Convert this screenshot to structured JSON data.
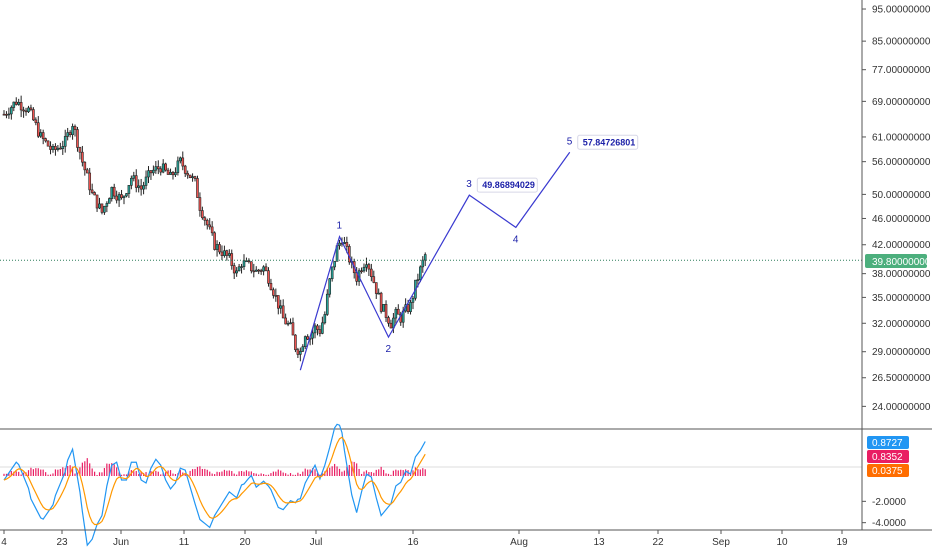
{
  "colors": {
    "up": "#26a69a",
    "down": "#ef5350",
    "body": "#222222",
    "wave": "#3a3ad0",
    "wave_text": "#1b1fa8",
    "price_line": "#2e7d5b",
    "price_badge": "#4caf7d",
    "macd_line": "#2196f3",
    "signal_line": "#ff9800",
    "hist": "#e91e63",
    "badge_blue": "#2196f3",
    "badge_pink": "#e91e63",
    "badge_orange": "#ff6d00",
    "grid": "#f2f2f2",
    "axis": "#555555"
  },
  "chart_data": [
    {
      "type": "candlestick",
      "log_scale": true,
      "grid": false,
      "ylim": [
        22.5,
        97
      ],
      "y_ticks": [
        "95.00000000",
        "85.00000000",
        "77.00000000",
        "69.00000000",
        "61.00000000",
        "56.00000000",
        "50.00000000",
        "46.00000000",
        "42.00000000",
        "38.00000000",
        "35.00000000",
        "32.00000000",
        "29.00000000",
        "26.50000000",
        "24.00000000"
      ],
      "x_ticks": [
        "4",
        "23",
        "Jun",
        "11",
        "20",
        "Jul",
        "16",
        "Aug",
        "13",
        "22",
        "Sep",
        "10",
        "19"
      ],
      "current_price": "39.80000000",
      "close_path": [
        [
          0,
          66
        ],
        [
          5,
          69
        ],
        [
          10,
          67
        ],
        [
          15,
          61
        ],
        [
          20,
          58
        ],
        [
          25,
          60
        ],
        [
          28,
          64
        ],
        [
          32,
          56
        ],
        [
          36,
          50
        ],
        [
          40,
          47
        ],
        [
          44,
          51
        ],
        [
          48,
          49
        ],
        [
          52,
          53
        ],
        [
          56,
          51
        ],
        [
          60,
          54
        ],
        [
          64,
          55
        ],
        [
          68,
          53
        ],
        [
          72,
          56
        ],
        [
          75,
          54
        ],
        [
          78,
          52
        ],
        [
          80,
          48
        ],
        [
          83,
          45
        ],
        [
          86,
          42
        ],
        [
          89,
          41
        ],
        [
          92,
          40
        ],
        [
          95,
          38
        ],
        [
          97,
          39.5
        ],
        [
          100,
          39
        ],
        [
          103,
          38.3
        ],
        [
          106,
          38.8
        ],
        [
          108,
          37.5
        ],
        [
          111,
          35
        ],
        [
          114,
          32.5
        ],
        [
          117,
          31.5
        ],
        [
          119,
          29.5
        ],
        [
          121,
          29
        ],
        [
          123,
          31
        ],
        [
          125,
          30.5
        ],
        [
          127,
          31.5
        ],
        [
          129,
          31.2
        ],
        [
          131,
          33
        ],
        [
          133,
          37
        ],
        [
          136,
          41.5
        ],
        [
          138,
          43
        ],
        [
          140,
          41
        ],
        [
          142,
          39
        ],
        [
          144,
          37.5
        ],
        [
          146,
          39
        ],
        [
          148,
          40
        ],
        [
          150,
          38
        ],
        [
          152,
          36
        ],
        [
          154,
          34
        ],
        [
          156,
          33
        ],
        [
          158,
          32
        ],
        [
          160,
          33
        ],
        [
          162,
          32.6
        ],
        [
          164,
          33.5
        ],
        [
          166,
          34
        ],
        [
          168,
          36.5
        ],
        [
          170,
          38.5
        ],
        [
          172,
          40.5
        ]
      ],
      "wave": [
        {
          "label": "",
          "x": 121,
          "y": 27.2
        },
        {
          "label": "1",
          "x": 137,
          "y": 43.2
        },
        {
          "label": "2",
          "x": 157,
          "y": 30.5
        },
        {
          "label": "3",
          "x": 190,
          "y": 49.86894029,
          "callout": "49.86894029"
        },
        {
          "label": "4",
          "x": 209,
          "y": 44.6
        },
        {
          "label": "5",
          "x": 231,
          "y": 57.84726801,
          "callout": "57.84726801"
        }
      ]
    },
    {
      "type": "macd",
      "ylim": [
        -4.5,
        4.5
      ],
      "y_ticks": [
        "-2.0000",
        "-4.0000"
      ],
      "badges": [
        "0.8727",
        "0.8352",
        "0.0375"
      ]
    }
  ]
}
